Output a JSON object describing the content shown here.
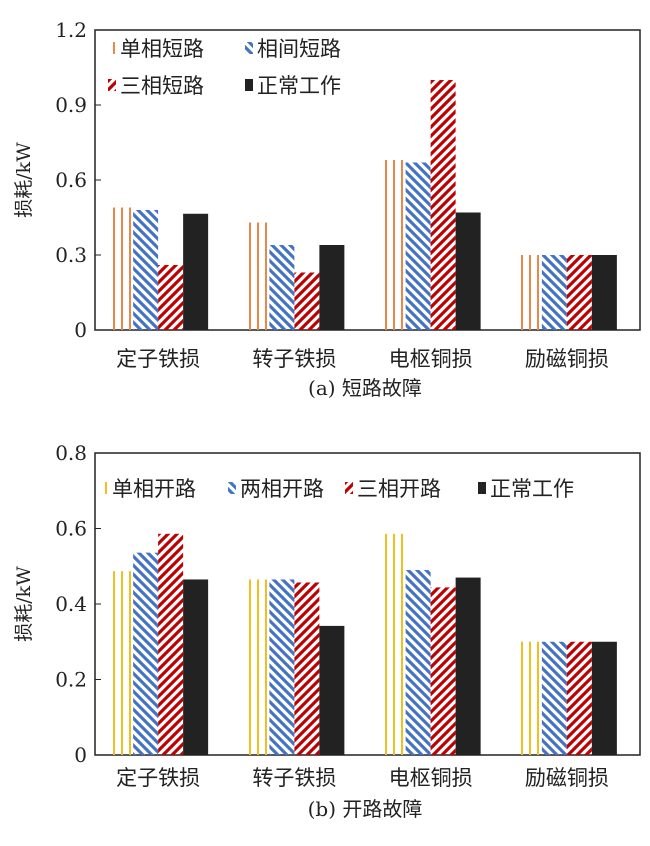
{
  "chart_data": [
    {
      "type": "bar",
      "title": "(a) 短路故障",
      "ylabel": "损耗/kW",
      "ylim": [
        0,
        1.2
      ],
      "yticks": [
        "0",
        "0.3",
        "0.6",
        "0.9",
        "1.2"
      ],
      "ytick_values": [
        0,
        0.3,
        0.6,
        0.9,
        1.2
      ],
      "categories": [
        "定子铁损",
        "转子铁损",
        "电枢铜损",
        "励磁铜损"
      ],
      "legend": "top-left",
      "series": [
        {
          "name": "单相短路",
          "color": "#e8894a",
          "pattern": "vertical",
          "values": [
            0.49,
            0.43,
            0.68,
            0.3
          ]
        },
        {
          "name": "相间短路",
          "color": "#4472c4",
          "pattern": "diag-down",
          "values": [
            0.48,
            0.34,
            0.67,
            0.3
          ]
        },
        {
          "name": "三相短路",
          "color": "#c00000",
          "pattern": "diag-up",
          "values": [
            0.26,
            0.23,
            1.0,
            0.3
          ]
        },
        {
          "name": "正常工作",
          "color": "#222222",
          "pattern": "solid",
          "values": [
            0.465,
            0.34,
            0.47,
            0.3
          ]
        }
      ]
    },
    {
      "type": "bar",
      "title": "(b) 开路故障",
      "ylabel": "损耗/kW",
      "ylim": [
        0,
        0.8
      ],
      "yticks": [
        "0",
        "0.2",
        "0.4",
        "0.6",
        "0.8"
      ],
      "ytick_values": [
        0,
        0.2,
        0.4,
        0.6,
        0.8
      ],
      "categories": [
        "定子铁损",
        "转子铁损",
        "电枢铜损",
        "励磁铜损"
      ],
      "legend": "top",
      "series": [
        {
          "name": "单相开路",
          "color": "#f0c020",
          "pattern": "vertical",
          "values": [
            0.487,
            0.465,
            0.586,
            0.3
          ]
        },
        {
          "name": "两相开路",
          "color": "#4472c4",
          "pattern": "diag-down",
          "values": [
            0.536,
            0.465,
            0.49,
            0.3
          ]
        },
        {
          "name": "三相开路",
          "color": "#c00000",
          "pattern": "diag-up",
          "values": [
            0.586,
            0.457,
            0.444,
            0.3
          ]
        },
        {
          "name": "正常工作",
          "color": "#222222",
          "pattern": "solid",
          "values": [
            0.465,
            0.342,
            0.47,
            0.3
          ]
        }
      ]
    }
  ]
}
